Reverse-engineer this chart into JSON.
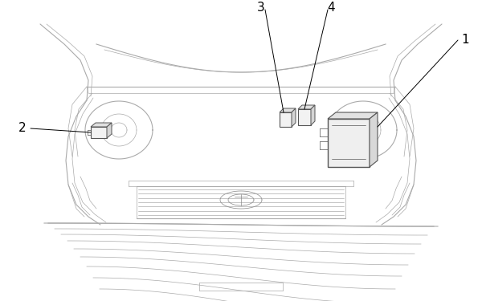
{
  "bg_color": "#ffffff",
  "line_color": "#aaaaaa",
  "mid_color": "#888888",
  "dark_color": "#555555",
  "black": "#000000",
  "figsize": [
    6.0,
    3.75
  ],
  "dpi": 100,
  "lw_thin": 0.5,
  "lw_med": 0.8,
  "lw_thick": 1.2
}
